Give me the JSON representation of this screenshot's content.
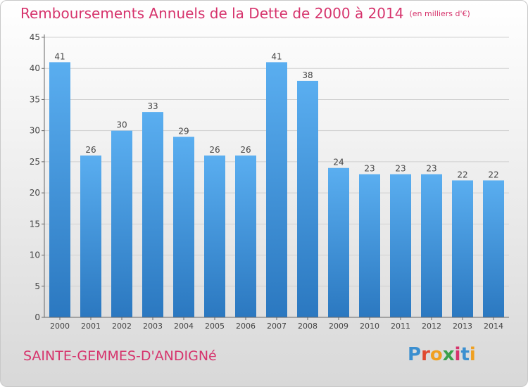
{
  "title": "Remboursements Annuels de la Dette de 2000 à 2014",
  "unit": "(en milliers d'€)",
  "commune": "SAINTE-GEMMES-D'ANDIGNé",
  "logo": {
    "text": "Proxiti",
    "letters": [
      "P",
      "r",
      "o",
      "x",
      "i",
      "t",
      "i"
    ],
    "colors": [
      "#3b8fd0",
      "#e0492f",
      "#f0a020",
      "#3aa04a",
      "#d6336c",
      "#3b8fd0",
      "#f0a020"
    ]
  },
  "colors": {
    "bar_top": "#5aaef0",
    "bar_bottom": "#2b78c0",
    "title": "#d6336c",
    "axis": "#666666",
    "grid": "#d0d0d0"
  },
  "chart_data": {
    "type": "bar",
    "categories": [
      "2000",
      "2001",
      "2002",
      "2003",
      "2004",
      "2005",
      "2006",
      "2007",
      "2008",
      "2009",
      "2010",
      "2011",
      "2012",
      "2013",
      "2014"
    ],
    "values": [
      41,
      26,
      30,
      33,
      29,
      26,
      26,
      41,
      38,
      24,
      23,
      23,
      23,
      22,
      22
    ],
    "yticks": [
      0,
      5,
      10,
      15,
      20,
      25,
      30,
      35,
      40,
      45
    ],
    "ylim": [
      0,
      45
    ],
    "grid": true
  }
}
